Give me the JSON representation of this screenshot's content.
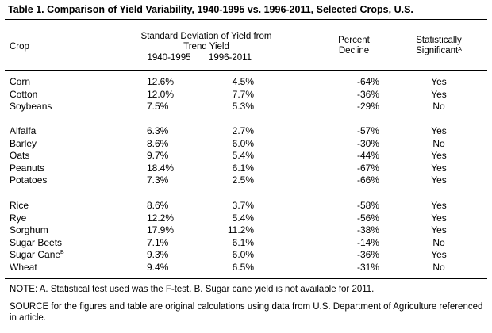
{
  "title": "Table 1.  Comparison of Yield Variability, 1940-1995 vs. 1996-2011, Selected Crops, U.S.",
  "headers": {
    "crop": "Crop",
    "sd_line1": "Standard Deviation of Yield from",
    "sd_line2": "Trend Yield",
    "period1": "1940-1995",
    "period2": "1996-2011",
    "decline_line1": "Percent",
    "decline_line2": "Decline",
    "sig_line1": "Statistically",
    "sig_line2": "Significant",
    "sig_sup": "A"
  },
  "groups": [
    [
      {
        "crop": "Corn",
        "sd1": "12.6%",
        "sd2": "4.5%",
        "decline": "-64%",
        "sig": "Yes"
      },
      {
        "crop": "Cotton",
        "sd1": "12.0%",
        "sd2": "7.7%",
        "decline": "-36%",
        "sig": "Yes"
      },
      {
        "crop": "Soybeans",
        "sd1": "7.5%",
        "sd2": "5.3%",
        "decline": "-29%",
        "sig": "No"
      }
    ],
    [
      {
        "crop": "Alfalfa",
        "sd1": "6.3%",
        "sd2": "2.7%",
        "decline": "-57%",
        "sig": "Yes"
      },
      {
        "crop": "Barley",
        "sd1": "8.6%",
        "sd2": "6.0%",
        "decline": "-30%",
        "sig": "No"
      },
      {
        "crop": "Oats",
        "sd1": "9.7%",
        "sd2": "5.4%",
        "decline": "-44%",
        "sig": "Yes"
      },
      {
        "crop": "Peanuts",
        "sd1": "18.4%",
        "sd2": "6.1%",
        "decline": "-67%",
        "sig": "Yes"
      },
      {
        "crop": "Potatoes",
        "sd1": "7.3%",
        "sd2": "2.5%",
        "decline": "-66%",
        "sig": "Yes"
      }
    ],
    [
      {
        "crop": "Rice",
        "sd1": "8.6%",
        "sd2": "3.7%",
        "decline": "-58%",
        "sig": "Yes"
      },
      {
        "crop": "Rye",
        "sd1": "12.2%",
        "sd2": "5.4%",
        "decline": "-56%",
        "sig": "Yes"
      },
      {
        "crop": "Sorghum",
        "sd1": "17.9%",
        "sd2": "11.2%",
        "decline": "-38%",
        "sig": "Yes"
      },
      {
        "crop": "Sugar Beets",
        "sd1": "7.1%",
        "sd2": "6.1%",
        "decline": "-14%",
        "sig": "No"
      },
      {
        "crop": "Sugar Cane",
        "crop_sup": "B",
        "sd1": "9.3%",
        "sd2": "6.0%",
        "decline": "-36%",
        "sig": "Yes"
      },
      {
        "crop": "Wheat",
        "sd1": "9.4%",
        "sd2": "6.5%",
        "decline": "-31%",
        "sig": "No"
      }
    ]
  ],
  "note": "NOTE:  A. Statistical test used was the F-test.   B.  Sugar cane yield is not available for 2011.",
  "source": "SOURCE for the figures and table are original calculations using data from U.S. Department of Agriculture referenced in article."
}
